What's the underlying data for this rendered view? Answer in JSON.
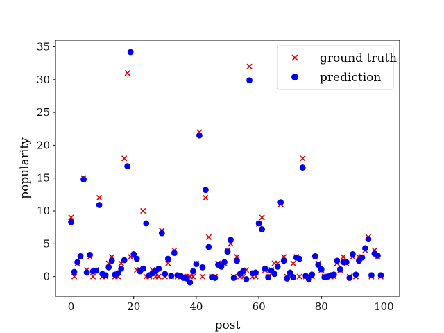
{
  "chart_data": {
    "type": "scatter",
    "title": "",
    "xlabel": "post",
    "ylabel": "popularity",
    "xlim": [
      -5,
      105
    ],
    "ylim": [
      -3,
      36
    ],
    "xticks": [
      0,
      20,
      40,
      60,
      80,
      100
    ],
    "yticks": [
      0,
      5,
      10,
      15,
      20,
      25,
      30,
      35
    ],
    "grid": false,
    "legend_position": "top-right",
    "series": [
      {
        "name": "ground truth",
        "marker": "x",
        "color": "#e00000",
        "x": [
          0,
          1,
          2,
          3,
          4,
          5,
          6,
          7,
          8,
          9,
          10,
          11,
          12,
          13,
          14,
          15,
          16,
          17,
          18,
          19,
          20,
          21,
          22,
          23,
          24,
          25,
          26,
          27,
          28,
          29,
          30,
          31,
          32,
          33,
          34,
          35,
          36,
          37,
          38,
          39,
          40,
          41,
          42,
          43,
          44,
          45,
          46,
          47,
          48,
          49,
          50,
          51,
          52,
          53,
          54,
          55,
          56,
          57,
          58,
          59,
          60,
          61,
          62,
          63,
          64,
          65,
          66,
          67,
          68,
          69,
          70,
          71,
          72,
          73,
          74,
          75,
          76,
          77,
          78,
          79,
          80,
          81,
          82,
          83,
          84,
          85,
          86,
          87,
          88,
          89,
          90,
          91,
          92,
          93,
          94,
          95,
          96,
          97,
          98,
          99
        ],
        "y": [
          9,
          0,
          2,
          3,
          15,
          1,
          3,
          0,
          1,
          12,
          0,
          0,
          2,
          3,
          0,
          0,
          2,
          18,
          31,
          3,
          3,
          1,
          1,
          10,
          0,
          0,
          1,
          0,
          0,
          7,
          0,
          2,
          0,
          4,
          0,
          0,
          0,
          0,
          0,
          0,
          2,
          22,
          0,
          12,
          6,
          0,
          0,
          2,
          2,
          2,
          4,
          5,
          0,
          3,
          0,
          0,
          1,
          32,
          0,
          0,
          8,
          9,
          1,
          0,
          1,
          2,
          2,
          11,
          3,
          0,
          0,
          2,
          3,
          0,
          18,
          0,
          0,
          0,
          3,
          2,
          1,
          0,
          0,
          0,
          0,
          2,
          1,
          3,
          2,
          0,
          3,
          0,
          3,
          3,
          4,
          6,
          0,
          4,
          3,
          0
        ]
      },
      {
        "name": "prediction",
        "marker": "o",
        "color": "#0000ee",
        "x": [
          0,
          1,
          2,
          3,
          4,
          5,
          6,
          7,
          8,
          9,
          10,
          11,
          12,
          13,
          14,
          15,
          16,
          17,
          18,
          19,
          20,
          21,
          22,
          23,
          24,
          25,
          26,
          27,
          28,
          29,
          30,
          31,
          32,
          33,
          34,
          35,
          36,
          37,
          38,
          39,
          40,
          41,
          42,
          43,
          44,
          45,
          46,
          47,
          48,
          49,
          50,
          51,
          52,
          53,
          54,
          55,
          56,
          57,
          58,
          59,
          60,
          61,
          62,
          63,
          64,
          65,
          66,
          67,
          68,
          69,
          70,
          71,
          72,
          73,
          74,
          75,
          76,
          77,
          78,
          79,
          80,
          81,
          82,
          83,
          84,
          85,
          86,
          87,
          88,
          89,
          90,
          91,
          92,
          93,
          94,
          95,
          96,
          97,
          98,
          99
        ],
        "y": [
          8.3,
          0.7,
          2.2,
          3.1,
          14.8,
          0.6,
          3.3,
          0.8,
          0.9,
          10.9,
          0.4,
          0.2,
          1.4,
          2.4,
          0.3,
          0.5,
          1.2,
          2.5,
          16.8,
          34.2,
          3.4,
          2.7,
          0.8,
          1.2,
          8.1,
          0.2,
          0.5,
          0.8,
          1.2,
          6.6,
          0.4,
          2.7,
          0.1,
          3.6,
          0.2,
          0.1,
          -0.2,
          -0.3,
          -0.9,
          0.8,
          1.9,
          21.5,
          1.4,
          13.2,
          4.5,
          -0.1,
          -0.2,
          1.8,
          1.5,
          2.2,
          3.8,
          5.6,
          -0.2,
          2.4,
          0.4,
          0.8,
          -0.4,
          29.9,
          0.5,
          0.6,
          8.1,
          7.2,
          1.2,
          -0.1,
          0.9,
          0.4,
          1.5,
          11.3,
          2.4,
          -0.3,
          0.6,
          -0.1,
          2.9,
          2.7,
          16.6,
          0.1,
          -0.4,
          0.3,
          3.1,
          1.8,
          1.1,
          -0.1,
          0,
          0.2,
          0.3,
          2.4,
          1.1,
          2.2,
          2.2,
          -0.2,
          3.4,
          0.3,
          2.4,
          2.9,
          4.3,
          5.7,
          0.2,
          3.5,
          3.2,
          0.2
        ]
      }
    ]
  }
}
